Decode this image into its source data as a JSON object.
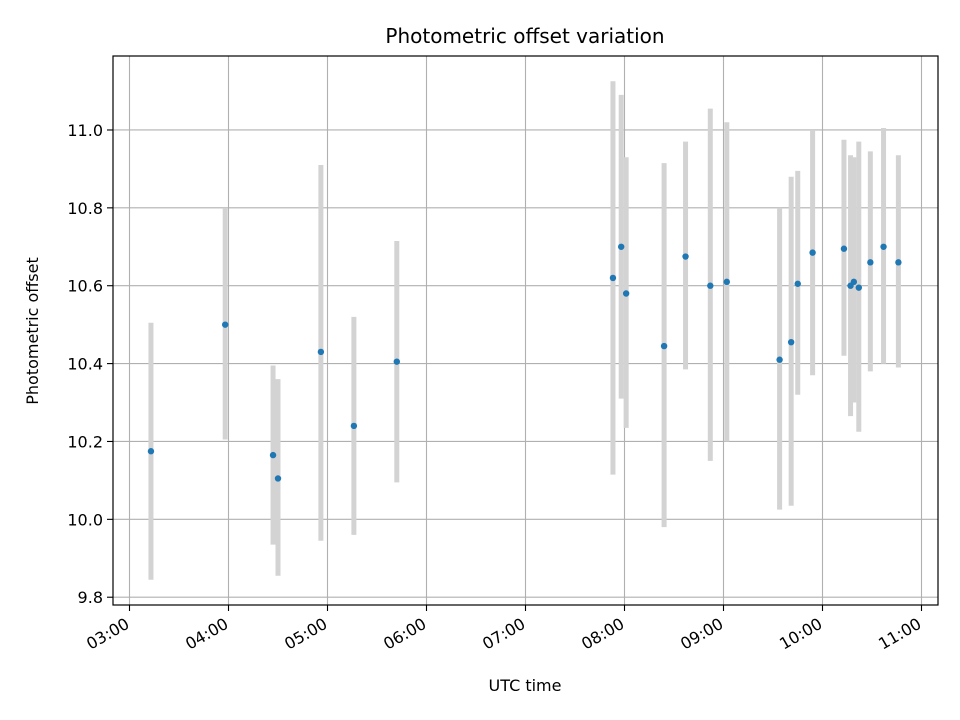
{
  "chart_data": {
    "type": "scatter",
    "title": "Photometric offset variation",
    "xlabel": "UTC time",
    "ylabel": "Photometric offset",
    "xlim": [
      "02:50",
      "11:10"
    ],
    "ylim": [
      9.78,
      11.19
    ],
    "x_ticks": [
      "03:00",
      "04:00",
      "05:00",
      "06:00",
      "07:00",
      "08:00",
      "09:00",
      "10:00",
      "11:00"
    ],
    "y_ticks": [
      "9.8",
      "10.0",
      "10.2",
      "10.4",
      "10.6",
      "10.8",
      "11.0"
    ],
    "grid": true,
    "point_color": "#1f77b4",
    "errorbar_color": "#d3d3d3",
    "series": [
      {
        "points": [
          {
            "t": "03:13",
            "y": 10.175,
            "lo": 9.845,
            "hi": 10.505
          },
          {
            "t": "03:58",
            "y": 10.5,
            "lo": 10.205,
            "hi": 10.8
          },
          {
            "t": "04:27",
            "y": 10.165,
            "lo": 9.935,
            "hi": 10.395
          },
          {
            "t": "04:30",
            "y": 10.105,
            "lo": 9.855,
            "hi": 10.36
          },
          {
            "t": "04:56",
            "y": 10.43,
            "lo": 9.945,
            "hi": 10.91
          },
          {
            "t": "05:16",
            "y": 10.24,
            "lo": 9.96,
            "hi": 10.52
          },
          {
            "t": "05:42",
            "y": 10.405,
            "lo": 10.095,
            "hi": 10.715
          },
          {
            "t": "07:53",
            "y": 10.62,
            "lo": 10.115,
            "hi": 11.125
          },
          {
            "t": "07:58",
            "y": 10.7,
            "lo": 10.31,
            "hi": 11.09
          },
          {
            "t": "08:01",
            "y": 10.58,
            "lo": 10.235,
            "hi": 10.93
          },
          {
            "t": "08:24",
            "y": 10.445,
            "lo": 9.98,
            "hi": 10.915
          },
          {
            "t": "08:37",
            "y": 10.675,
            "lo": 10.385,
            "hi": 10.97
          },
          {
            "t": "08:52",
            "y": 10.6,
            "lo": 10.15,
            "hi": 11.055
          },
          {
            "t": "09:02",
            "y": 10.61,
            "lo": 10.2,
            "hi": 11.02
          },
          {
            "t": "09:34",
            "y": 10.41,
            "lo": 10.025,
            "hi": 10.8
          },
          {
            "t": "09:41",
            "y": 10.455,
            "lo": 10.035,
            "hi": 10.88
          },
          {
            "t": "09:45",
            "y": 10.605,
            "lo": 10.32,
            "hi": 10.895
          },
          {
            "t": "09:54",
            "y": 10.685,
            "lo": 10.37,
            "hi": 11.0
          },
          {
            "t": "10:13",
            "y": 10.695,
            "lo": 10.42,
            "hi": 10.975
          },
          {
            "t": "10:17",
            "y": 10.6,
            "lo": 10.265,
            "hi": 10.935
          },
          {
            "t": "10:19",
            "y": 10.61,
            "lo": 10.3,
            "hi": 10.93
          },
          {
            "t": "10:22",
            "y": 10.595,
            "lo": 10.225,
            "hi": 10.97
          },
          {
            "t": "10:29",
            "y": 10.66,
            "lo": 10.38,
            "hi": 10.945
          },
          {
            "t": "10:37",
            "y": 10.7,
            "lo": 10.4,
            "hi": 11.005
          },
          {
            "t": "10:46",
            "y": 10.66,
            "lo": 10.39,
            "hi": 10.935
          }
        ]
      }
    ]
  }
}
